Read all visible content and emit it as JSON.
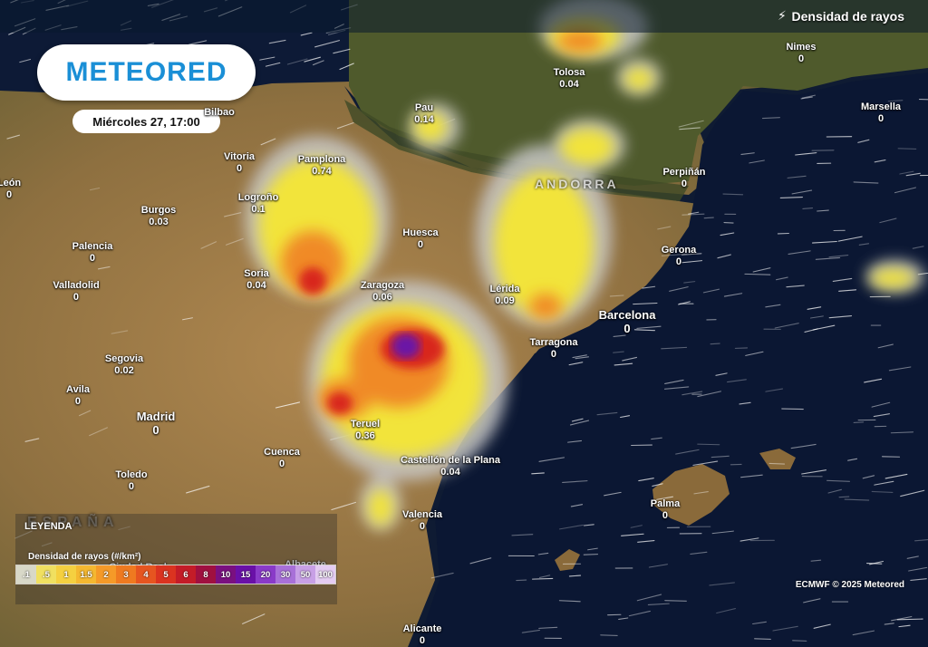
{
  "header": {
    "layer_title": "Densidad de rayos",
    "layer_icon": "lightning-icon"
  },
  "brand": {
    "logo_text": "METEORED",
    "logo_color": "#1a8fd6"
  },
  "timestamp": "Miércoles 27, 17:00",
  "cities": [
    {
      "name": "Bilbao",
      "value": ""
    },
    {
      "name": "Vitoria",
      "value": "0"
    },
    {
      "name": "Pamplona",
      "value": "0.74"
    },
    {
      "name": "León",
      "value": "0"
    },
    {
      "name": "Burgos",
      "value": "0.03"
    },
    {
      "name": "Logroño",
      "value": "0.1"
    },
    {
      "name": "Palencia",
      "value": "0"
    },
    {
      "name": "Valladolid",
      "value": "0"
    },
    {
      "name": "Soria",
      "value": "0.04"
    },
    {
      "name": "Zaragoza",
      "value": "0.06"
    },
    {
      "name": "Huesca",
      "value": "0"
    },
    {
      "name": "Pau",
      "value": "0.14"
    },
    {
      "name": "Tolosa",
      "value": "0.04"
    },
    {
      "name": "Nimes",
      "value": "0"
    },
    {
      "name": "Marsella",
      "value": "0"
    },
    {
      "name": "Perpiñán",
      "value": "0"
    },
    {
      "name": "Gerona",
      "value": "0"
    },
    {
      "name": "Lérida",
      "value": "0.09"
    },
    {
      "name": "Barcelona",
      "value": "0"
    },
    {
      "name": "Tarragona",
      "value": "0"
    },
    {
      "name": "Segovia",
      "value": "0.02"
    },
    {
      "name": "Avila",
      "value": "0"
    },
    {
      "name": "Madrid",
      "value": "0"
    },
    {
      "name": "Teruel",
      "value": "0.36"
    },
    {
      "name": "Cuenca",
      "value": "0"
    },
    {
      "name": "Castellón de la Plana",
      "value": "0.04"
    },
    {
      "name": "Toledo",
      "value": "0"
    },
    {
      "name": "Valencia",
      "value": "0"
    },
    {
      "name": "Palma",
      "value": "0"
    },
    {
      "name": "Alicante",
      "value": "0"
    },
    {
      "name": "Albacete",
      "value": ""
    },
    {
      "name": "Ciudad Real",
      "value": ""
    }
  ],
  "regions": {
    "andorra": "ANDORRA",
    "spain": "ESPAÑA"
  },
  "legend": {
    "title": "LEYENDA",
    "subtitle": "Densidad de rayos (#/km²)",
    "steps": [
      {
        "label": ".1",
        "color": "#d8d8c8"
      },
      {
        "label": ".5",
        "color": "#f0e060"
      },
      {
        "label": "1",
        "color": "#f5d040"
      },
      {
        "label": "1.5",
        "color": "#f5b830"
      },
      {
        "label": "2",
        "color": "#f59a28"
      },
      {
        "label": "3",
        "color": "#ef7a20"
      },
      {
        "label": "4",
        "color": "#e65520"
      },
      {
        "label": "5",
        "color": "#db3320"
      },
      {
        "label": "6",
        "color": "#c41c28"
      },
      {
        "label": "8",
        "color": "#a01040"
      },
      {
        "label": "10",
        "color": "#7a1080"
      },
      {
        "label": "15",
        "color": "#6a10a8"
      },
      {
        "label": "20",
        "color": "#8a3ac8"
      },
      {
        "label": "30",
        "color": "#a870d8"
      },
      {
        "label": "50",
        "color": "#c8a0e6"
      },
      {
        "label": "100",
        "color": "#e4ccf2"
      }
    ]
  },
  "footer": {
    "copyright": "ECMWF © 2025 Meteored"
  }
}
